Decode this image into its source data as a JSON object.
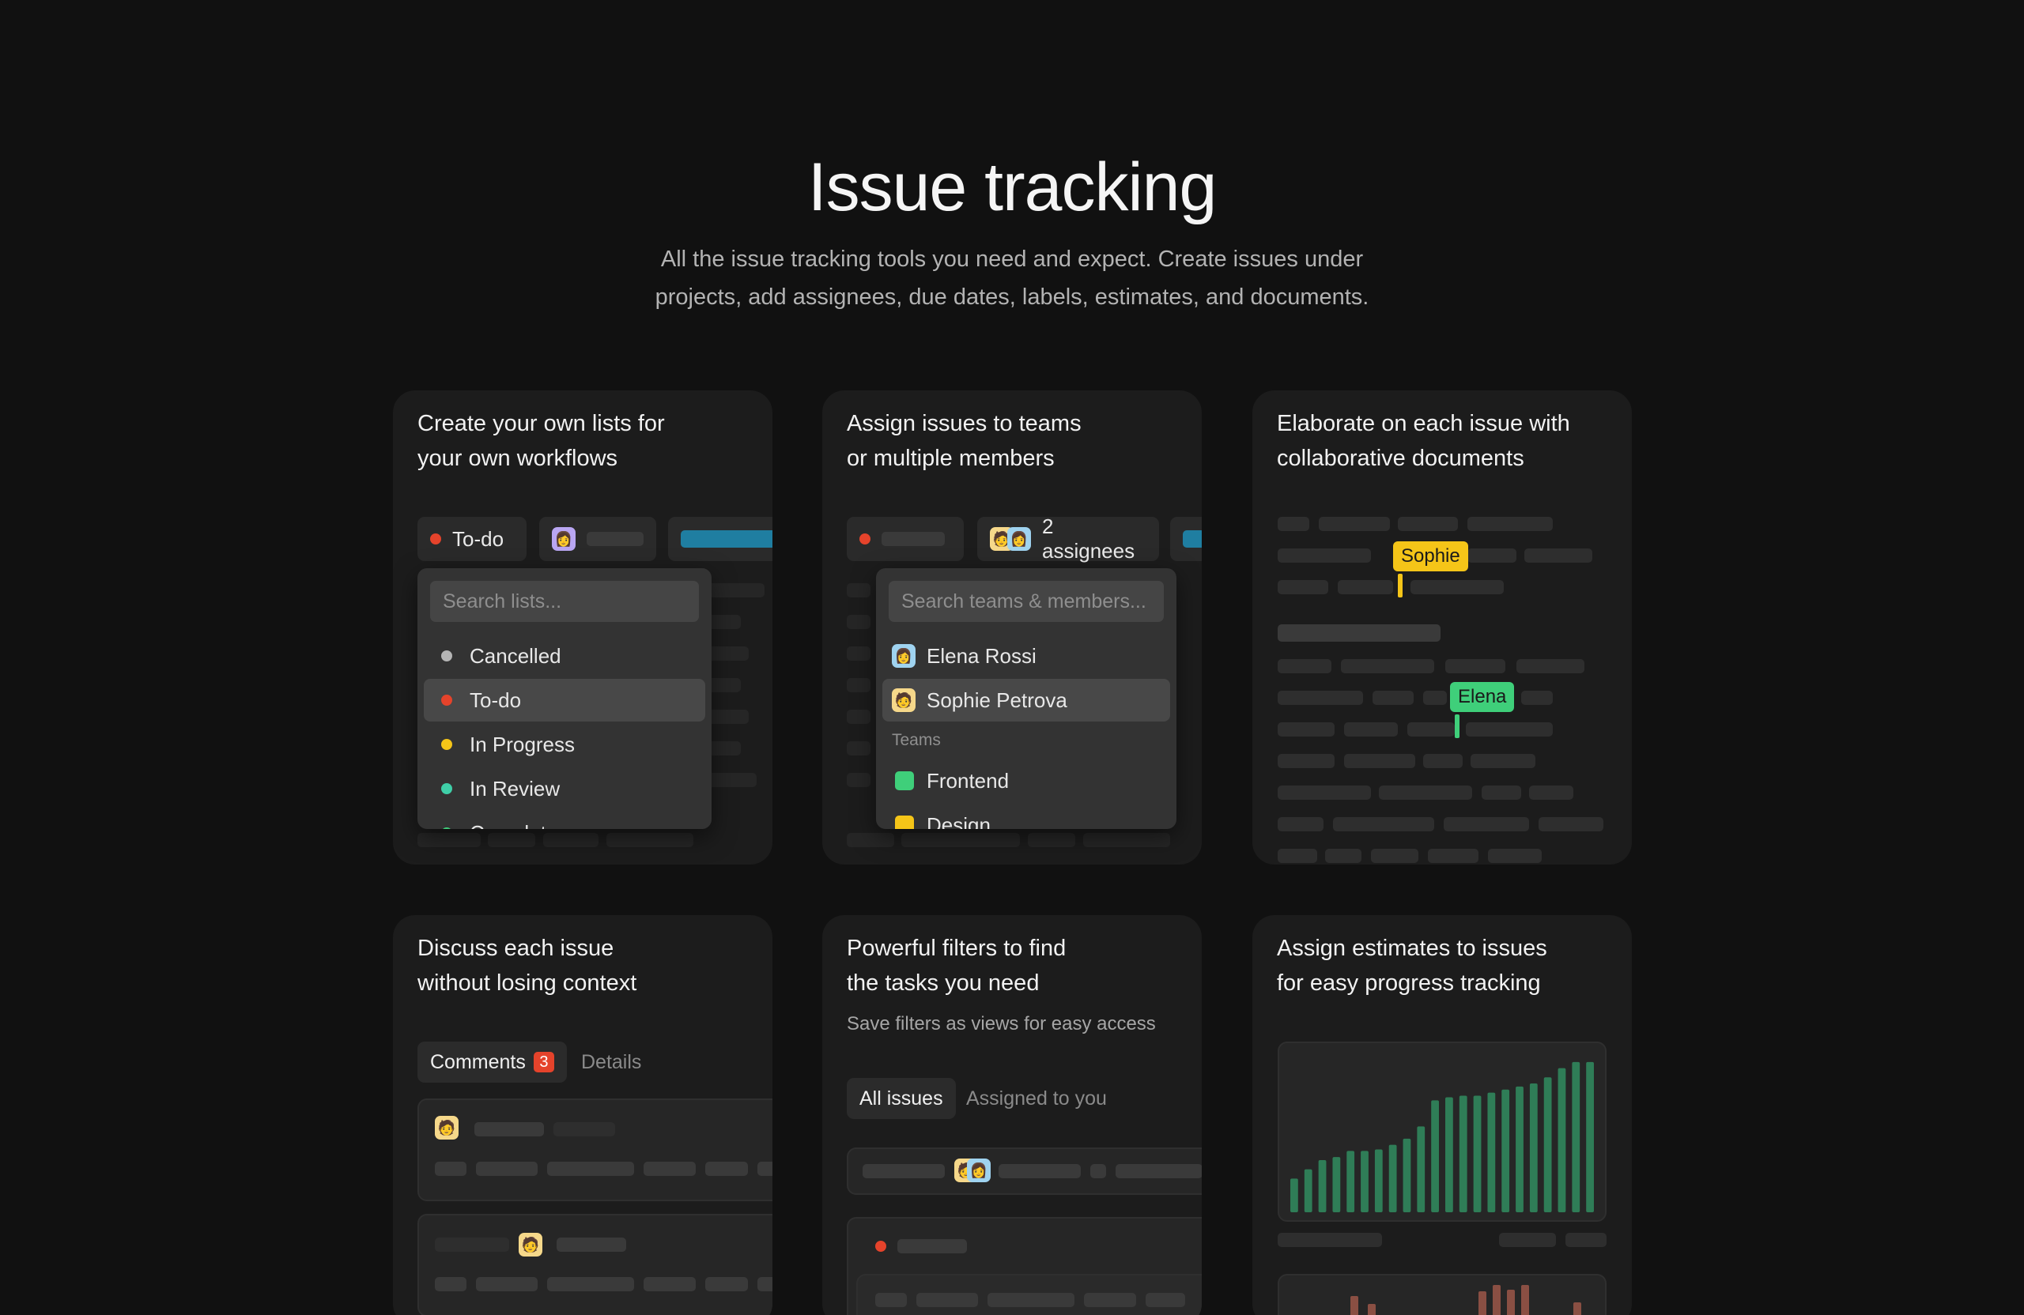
{
  "hero": {
    "title": "Issue tracking",
    "subtitle_line1": "All the issue tracking tools you need and expect. Create issues under",
    "subtitle_line2": "projects, add assignees, due dates, labels, estimates, and documents."
  },
  "cards": {
    "lists": {
      "title_line1": "Create your own lists for",
      "title_line2": "your own workflows",
      "chip_status": "To-do",
      "search_placeholder": "Search lists...",
      "items": [
        {
          "label": "Cancelled",
          "color": "#b5b5b5"
        },
        {
          "label": "To-do",
          "color": "#e5432b"
        },
        {
          "label": "In Progress",
          "color": "#f5c518"
        },
        {
          "label": "In Review",
          "color": "#3fcfa8"
        },
        {
          "label": "Complete",
          "color": "#3fcf7a"
        }
      ]
    },
    "assign": {
      "title_line1": "Assign issues to teams",
      "title_line2": "or multiple members",
      "chip_assignees": "2 assignees",
      "search_placeholder": "Search teams & members...",
      "members": [
        "Elena Rossi",
        "Sophie Petrova"
      ],
      "teams_header": "Teams",
      "teams": [
        {
          "label": "Frontend",
          "color": "#3fcf7a"
        },
        {
          "label": "Design",
          "color": "#f5c518"
        }
      ]
    },
    "documents": {
      "title_line1": "Elaborate on each issue with",
      "title_line2": "collaborative documents",
      "cursor_1": {
        "name": "Sophie",
        "color": "#f5c518"
      },
      "cursor_2": {
        "name": "Elena",
        "color": "#3fcf7a"
      }
    },
    "discuss": {
      "title_line1": "Discuss each issue",
      "title_line2": "without losing context",
      "tab_comments": "Comments",
      "comment_count": "3",
      "tab_details": "Details"
    },
    "filters": {
      "title_line1": "Powerful filters to find",
      "title_line2": "the tasks you need",
      "subtitle": "Save filters as views for easy access",
      "tab_all": "All issues",
      "tab_assigned": "Assigned to you"
    },
    "estimates": {
      "title_line1": "Assign estimates to issues",
      "title_line2": "for easy progress tracking"
    }
  },
  "chart_data": {
    "type": "bar",
    "values": [
      22,
      28,
      34,
      36,
      40,
      40,
      41,
      44,
      48,
      56,
      73,
      75,
      76,
      76,
      78,
      80,
      82,
      84,
      88,
      94,
      98,
      98
    ],
    "color": "#2f7d57"
  },
  "colors": {
    "accent_red": "#e5432b",
    "accent_yellow": "#f5c518",
    "accent_green": "#3fcf7a",
    "accent_blue": "#1f7ea1"
  }
}
